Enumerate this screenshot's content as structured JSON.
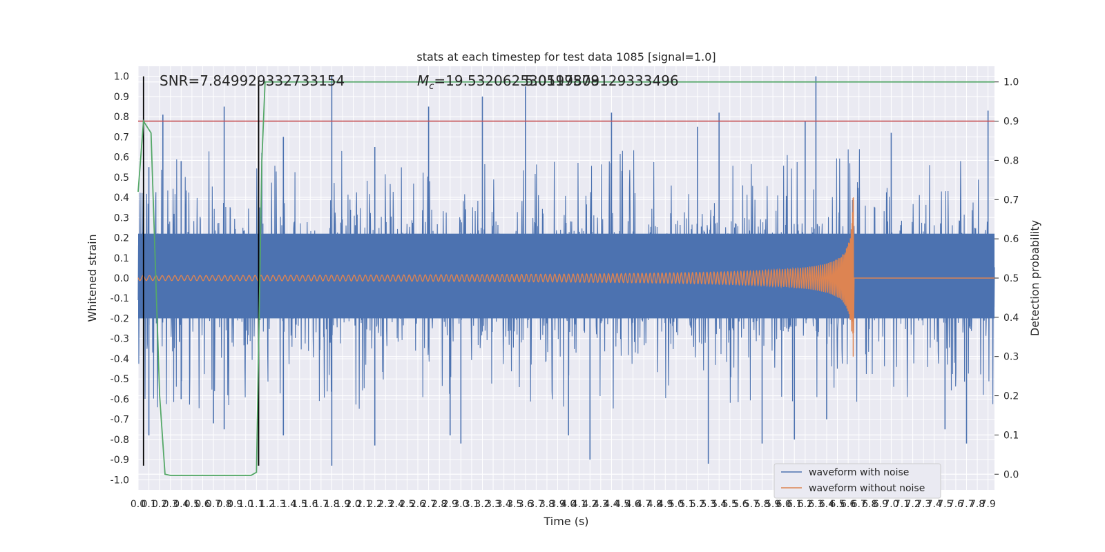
{
  "chart_data": {
    "type": "line",
    "title": "stats at each timestep for test data 1085 [signal=1.0]",
    "xlabel": "Time (s)",
    "ylabel": "Whitened strain",
    "y2label": "Detection probability",
    "xlim": [
      0.0,
      7.96
    ],
    "ylim": [
      -1.05,
      1.05
    ],
    "y2lim": [
      -0.04,
      1.04
    ],
    "grid": true,
    "legend_position": "lower-right",
    "background_color": "#eaeaf2",
    "x_ticks": [
      "0.0",
      "0.1",
      "0.2",
      "0.3",
      "0.4",
      "0.5",
      "0.6",
      "0.7",
      "0.8",
      "0.9",
      "1.0",
      "1.1",
      "1.2",
      "1.3",
      "1.4",
      "1.5",
      "1.6",
      "1.7",
      "1.8",
      "1.9",
      "2.0",
      "2.1",
      "2.2",
      "2.3",
      "2.4",
      "2.5",
      "2.6",
      "2.7",
      "2.8",
      "2.9",
      "3.0",
      "3.1",
      "3.2",
      "3.3",
      "3.4",
      "3.5",
      "3.6",
      "3.7",
      "3.8",
      "3.9",
      "4.0",
      "4.1",
      "4.2",
      "4.3",
      "4.4",
      "4.5",
      "4.6",
      "4.7",
      "4.8",
      "4.9",
      "5.0",
      "5.1",
      "5.2",
      "5.3",
      "5.4",
      "5.5",
      "5.6",
      "5.7",
      "5.8",
      "5.9",
      "6.0",
      "6.1",
      "6.2",
      "6.3",
      "6.4",
      "6.5",
      "6.6",
      "6.7",
      "6.8",
      "6.9",
      "7.0",
      "7.1",
      "7.2",
      "7.3",
      "7.4",
      "7.5",
      "7.6",
      "7.7",
      "7.8",
      "7.9"
    ],
    "y_ticks": [
      "1.0",
      "0.9",
      "0.8",
      "0.7",
      "0.6",
      "0.5",
      "0.4",
      "0.3",
      "0.2",
      "0.1",
      "0.0",
      "-0.1",
      "-0.2",
      "-0.3",
      "-0.4",
      "-0.5",
      "-0.6",
      "-0.7",
      "-0.8",
      "-0.9",
      "-1.0"
    ],
    "y2_ticks": [
      "1.0",
      "0.9",
      "0.8",
      "0.7",
      "0.6",
      "0.5",
      "0.4",
      "0.3",
      "0.2",
      "0.1",
      "0.0"
    ],
    "annotations": {
      "snr": "SNR=7.849929332733154",
      "mc": "M",
      "mc_sub": "c",
      "mc_value": "=19.532062530517578",
      "overlap": "5.0199809129333496"
    },
    "series": [
      {
        "name": "waveform with noise",
        "color": "#4c72b0",
        "axis": "left",
        "envelope": "random noise, |typical| 0.4, peaks to 1.0",
        "spikes_top": [
          [
            0.05,
            0.62
          ],
          [
            0.1,
            0.55
          ],
          [
            0.23,
            0.81
          ],
          [
            0.4,
            0.58
          ],
          [
            0.8,
            0.85
          ],
          [
            1.15,
            0.62
          ],
          [
            1.35,
            0.7
          ],
          [
            1.8,
            1.0
          ],
          [
            2.2,
            0.65
          ],
          [
            2.7,
            0.85
          ],
          [
            3.2,
            0.9
          ],
          [
            3.6,
            0.95
          ],
          [
            4.4,
            0.82
          ],
          [
            5.2,
            0.75
          ],
          [
            5.4,
            0.82
          ],
          [
            6.2,
            0.78
          ],
          [
            6.3,
            1.0
          ],
          [
            7.0,
            0.72
          ],
          [
            7.9,
            0.83
          ]
        ],
        "spikes_bottom": [
          [
            0.1,
            -0.78
          ],
          [
            0.4,
            -0.6
          ],
          [
            0.7,
            -0.72
          ],
          [
            0.8,
            -0.75
          ],
          [
            1.35,
            -0.78
          ],
          [
            1.8,
            -0.93
          ],
          [
            2.2,
            -0.83
          ],
          [
            2.9,
            -0.78
          ],
          [
            3.0,
            -0.82
          ],
          [
            4.0,
            -0.78
          ],
          [
            4.2,
            -0.9
          ],
          [
            5.3,
            -0.92
          ],
          [
            5.8,
            -0.82
          ],
          [
            6.1,
            -0.8
          ],
          [
            6.4,
            -0.7
          ],
          [
            7.5,
            -0.75
          ],
          [
            7.7,
            -0.82
          ]
        ]
      },
      {
        "name": "waveform without noise",
        "color": "#dd8452",
        "axis": "left",
        "chirp": {
          "t_start": 0.0,
          "t_merge": 6.65,
          "peak_amplitude": 0.4
        }
      },
      {
        "name": "",
        "color": "#55a868",
        "axis": "right",
        "points": [
          [
            0.0,
            0.72
          ],
          [
            0.05,
            0.9
          ],
          [
            0.12,
            0.87
          ],
          [
            0.2,
            0.2
          ],
          [
            0.25,
            0.0
          ],
          [
            0.3,
            -0.003
          ],
          [
            1.05,
            -0.003
          ],
          [
            1.1,
            0.005
          ],
          [
            1.15,
            0.8
          ],
          [
            1.18,
            1.0
          ],
          [
            7.96,
            1.0
          ]
        ]
      }
    ],
    "reference_lines": {
      "threshold": {
        "axis": "right",
        "y": 0.9,
        "color": "#c44e52"
      },
      "event_markers": {
        "x": [
          0.05,
          1.12
        ],
        "y_range": [
          -0.93,
          1.0
        ],
        "color": "#000000"
      }
    }
  }
}
